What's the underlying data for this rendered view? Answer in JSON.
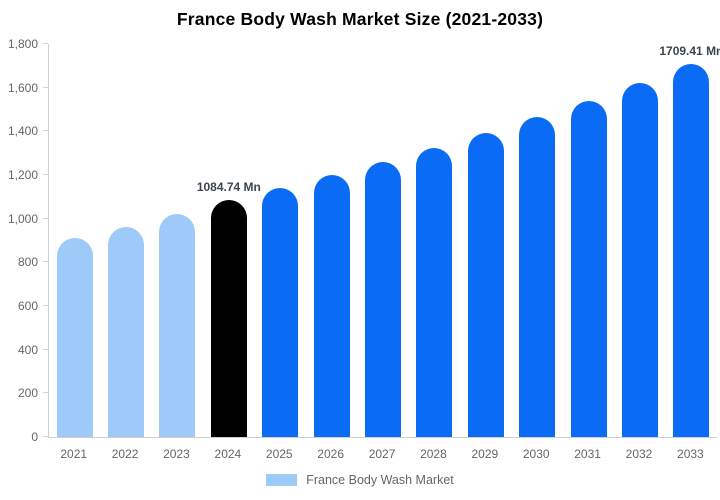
{
  "chart_data": {
    "type": "bar",
    "title": "France Body Wash Market Size (2021-2033)",
    "unit": "Mn",
    "xlabel": "",
    "ylabel": "",
    "ylim": [
      0,
      1800
    ],
    "grid": false,
    "legend_position": "bottom",
    "legend": {
      "label": "France Body Wash Market",
      "swatch_color": "#9ECAF9"
    },
    "yticks": [
      {
        "value": 0,
        "label": "0"
      },
      {
        "value": 200,
        "label": "200"
      },
      {
        "value": 400,
        "label": "400"
      },
      {
        "value": 600,
        "label": "600"
      },
      {
        "value": 800,
        "label": "800"
      },
      {
        "value": 1000,
        "label": "1,000"
      },
      {
        "value": 1200,
        "label": "1,200"
      },
      {
        "value": 1400,
        "label": "1,400"
      },
      {
        "value": 1600,
        "label": "1,600"
      },
      {
        "value": 1800,
        "label": "1,800"
      }
    ],
    "categories": [
      "2021",
      "2022",
      "2023",
      "2024",
      "2025",
      "2026",
      "2027",
      "2028",
      "2029",
      "2030",
      "2031",
      "2032",
      "2033"
    ],
    "series": [
      {
        "name": "France Body Wash Market",
        "points": [
          {
            "year": "2021",
            "value": 910,
            "color": "#9ECAF9",
            "label": ""
          },
          {
            "year": "2022",
            "value": 962,
            "color": "#9ECAF9",
            "label": ""
          },
          {
            "year": "2023",
            "value": 1020,
            "color": "#9ECAF9",
            "label": ""
          },
          {
            "year": "2024",
            "value": 1084.74,
            "color": "#000000",
            "label": "1084.74 Mn"
          },
          {
            "year": "2025",
            "value": 1140,
            "color": "#0A6CF5",
            "label": ""
          },
          {
            "year": "2026",
            "value": 1198,
            "color": "#0A6CF5",
            "label": ""
          },
          {
            "year": "2027",
            "value": 1260,
            "color": "#0A6CF5",
            "label": ""
          },
          {
            "year": "2028",
            "value": 1324,
            "color": "#0A6CF5",
            "label": ""
          },
          {
            "year": "2029",
            "value": 1392,
            "color": "#0A6CF5",
            "label": ""
          },
          {
            "year": "2030",
            "value": 1464,
            "color": "#0A6CF5",
            "label": ""
          },
          {
            "year": "2031",
            "value": 1538,
            "color": "#0A6CF5",
            "label": ""
          },
          {
            "year": "2032",
            "value": 1620,
            "color": "#0A6CF5",
            "label": ""
          },
          {
            "year": "2033",
            "value": 1709.41,
            "color": "#0A6CF5",
            "label": "1709.41 Mn"
          }
        ]
      }
    ],
    "colors": {
      "historical": "#9ECAF9",
      "base_year": "#000000",
      "forecast": "#0A6CF5",
      "axis_line": "#D0D0D0",
      "tick_text": "#666666",
      "data_label_text": "#3D454F",
      "title_text": "#000000"
    }
  }
}
